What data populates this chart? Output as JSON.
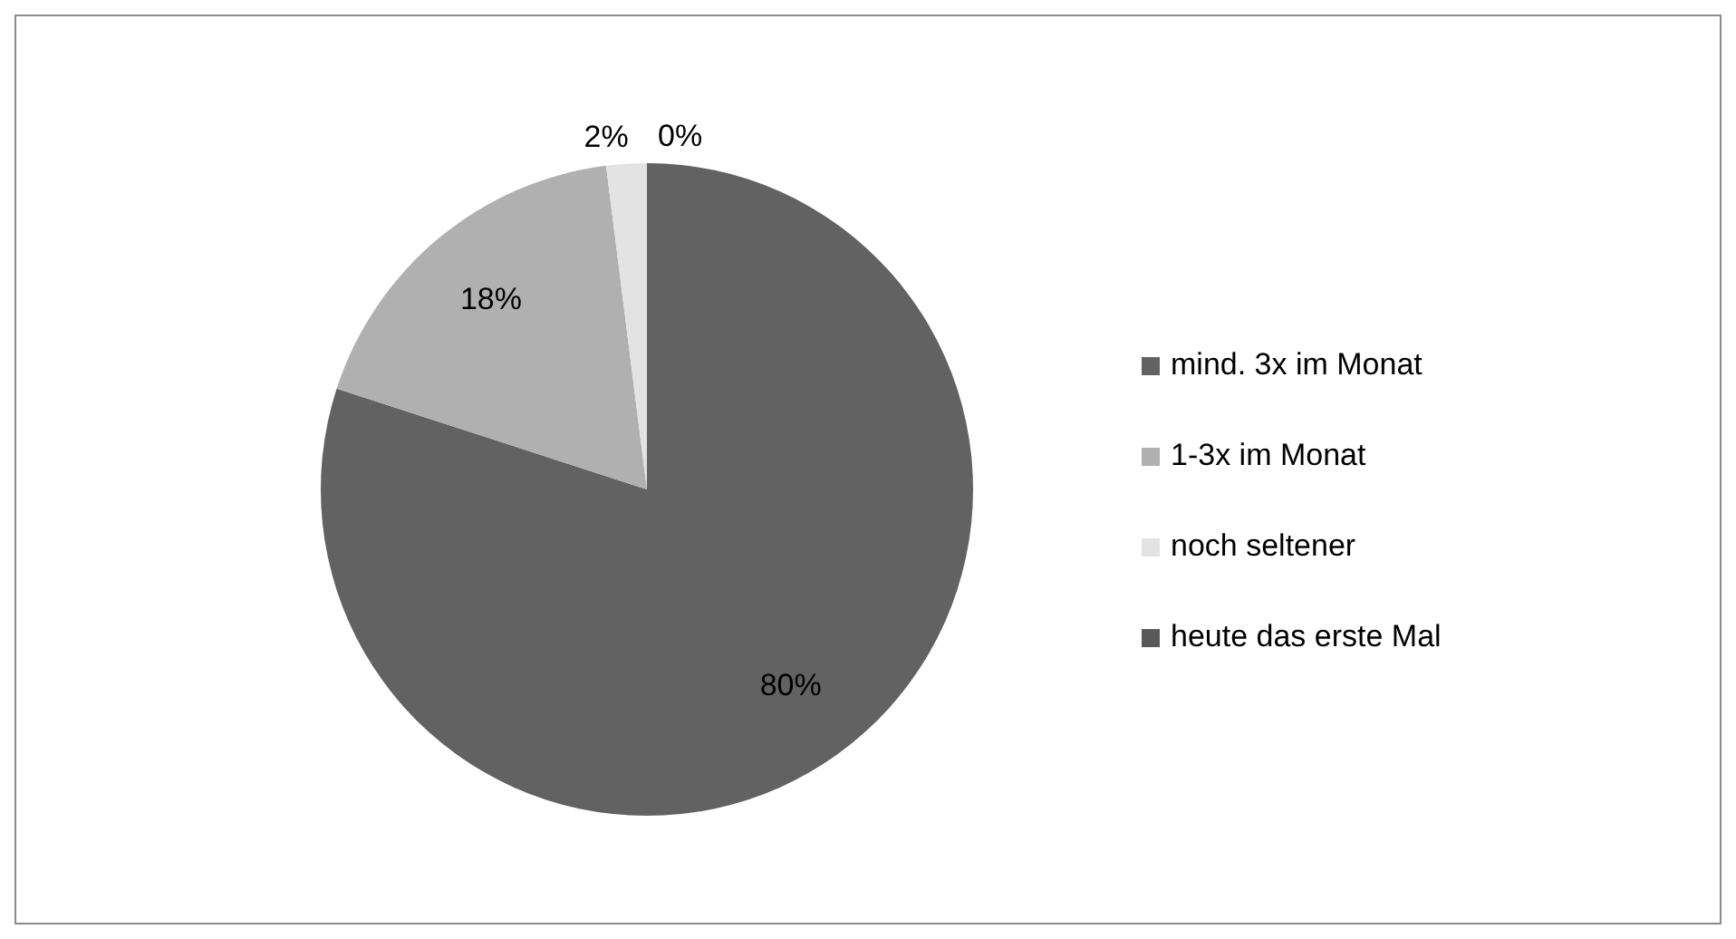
{
  "chart_data": {
    "type": "pie",
    "categories": [
      "mind. 3x im Monat",
      "1-3x im Monat",
      "noch seltener",
      "heute das erste Mal"
    ],
    "values": [
      80,
      18,
      2,
      0
    ],
    "colors": [
      "#626262",
      "#b0b0b0",
      "#e3e3e3",
      "#595959"
    ],
    "value_labels": [
      "80%",
      "18%",
      "2%",
      "0%"
    ],
    "legend": "right"
  }
}
